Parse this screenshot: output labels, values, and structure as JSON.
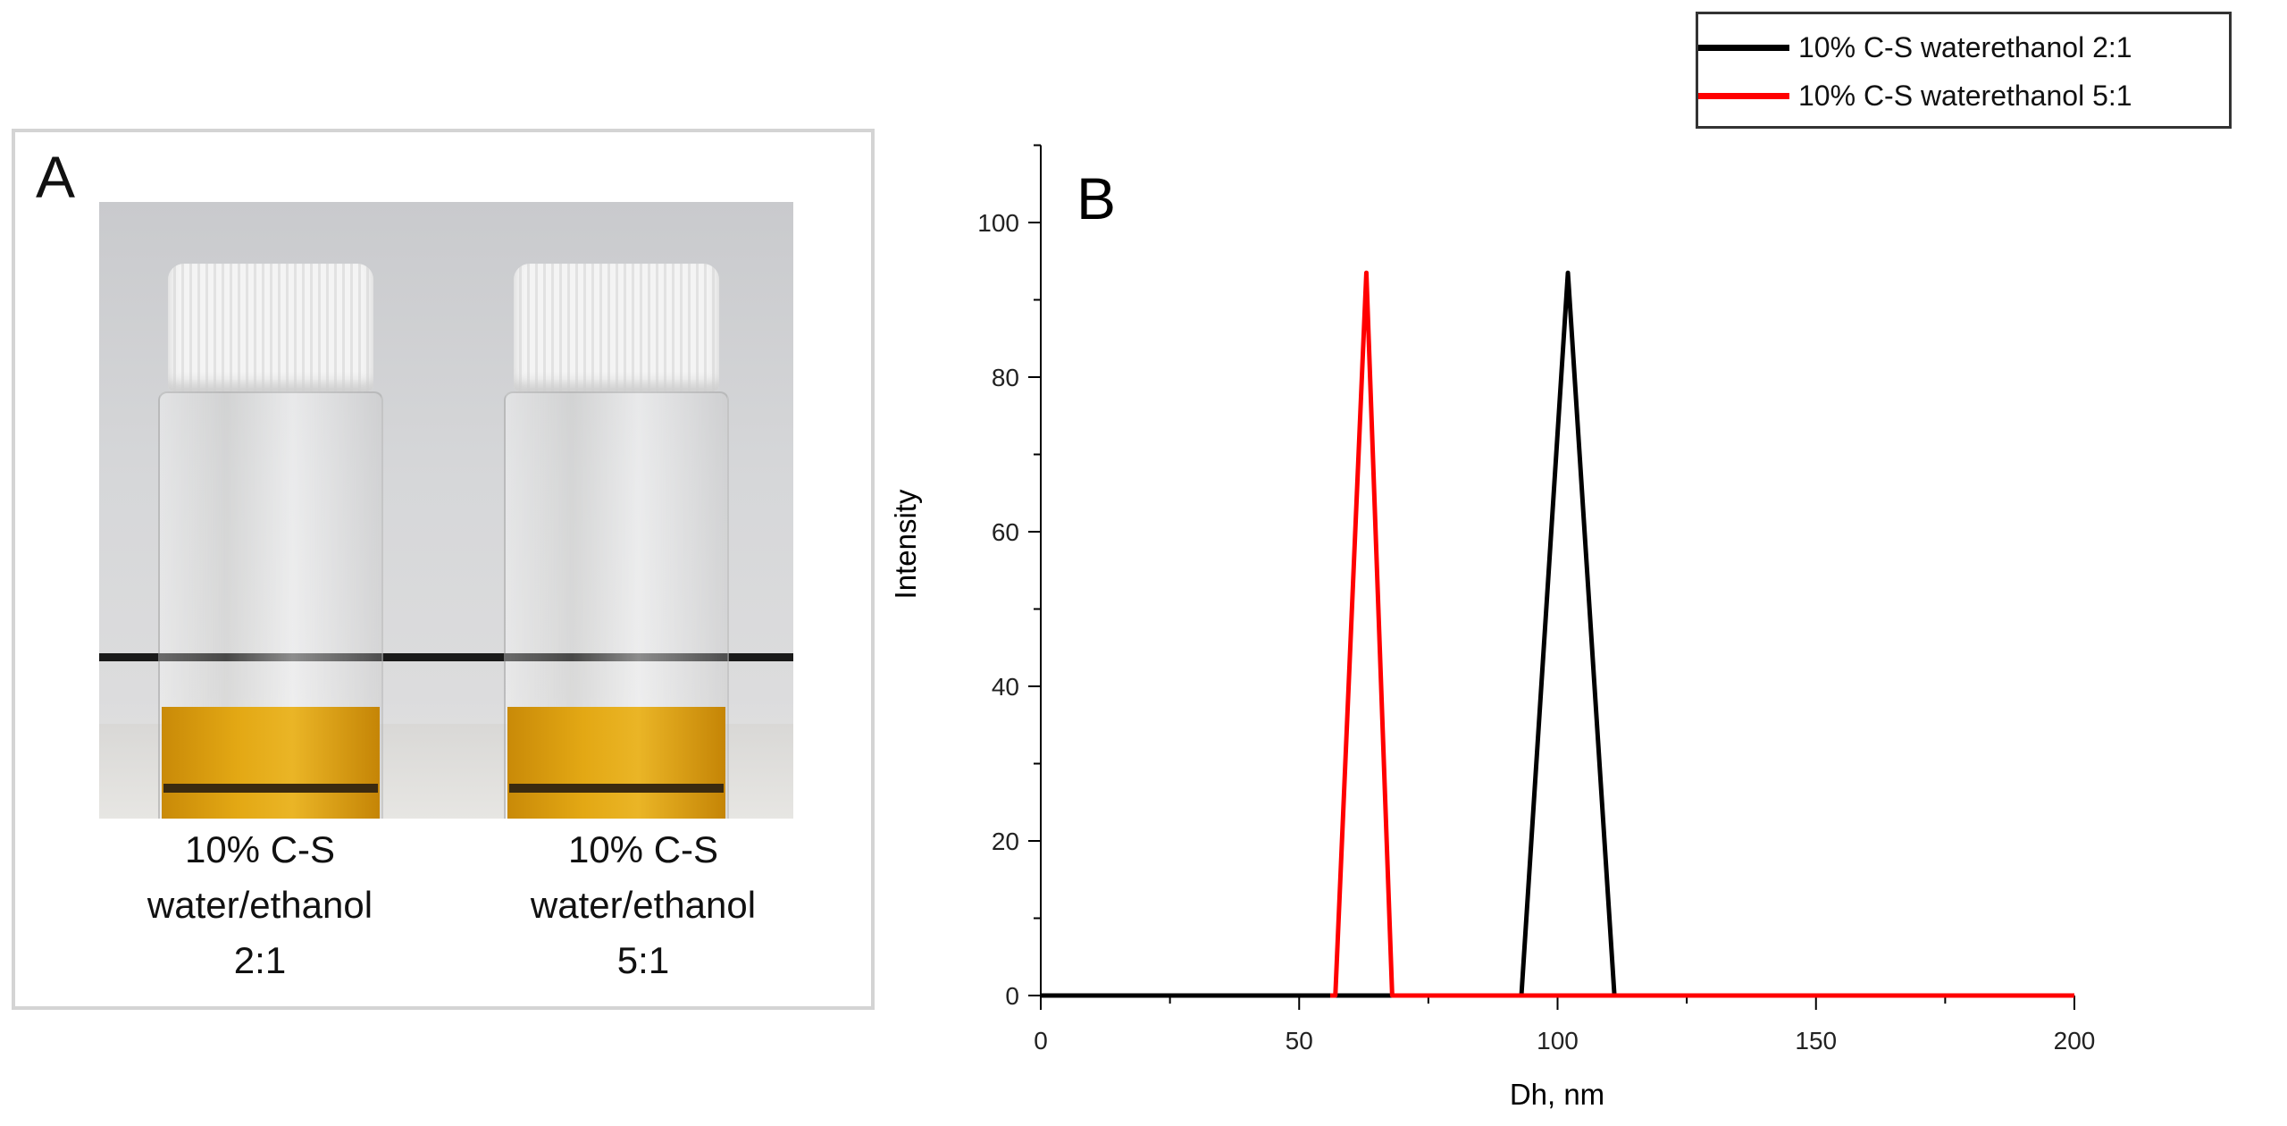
{
  "panel_a": {
    "label": "A",
    "samples": [
      {
        "lines": [
          "10% C-S",
          "water/ethanol",
          "2:1"
        ]
      },
      {
        "lines": [
          "10% C-S",
          "water/ethanol",
          "5:1"
        ]
      }
    ]
  },
  "chart_data": {
    "type": "line",
    "panel_label": "B",
    "title": "",
    "xlabel": "Dh, nm",
    "ylabel": "Intensity",
    "xlim": [
      0,
      200
    ],
    "ylim": [
      0,
      110
    ],
    "xticks": [
      0,
      50,
      100,
      150,
      200
    ],
    "yticks": [
      0,
      20,
      40,
      60,
      80,
      100
    ],
    "grid": false,
    "legend_position": "top-right",
    "series": [
      {
        "name": "10% C-S waterethanol 2:1",
        "color": "#000000",
        "x": [
          0,
          93,
          102,
          111,
          200
        ],
        "y": [
          0,
          0,
          93.5,
          0,
          0
        ]
      },
      {
        "name": "10% C-S waterethanol 5:1",
        "color": "#ff0000",
        "x": [
          56,
          57,
          63,
          68,
          69,
          200
        ],
        "y": [
          0,
          0,
          93.5,
          0,
          0,
          0
        ]
      }
    ]
  }
}
